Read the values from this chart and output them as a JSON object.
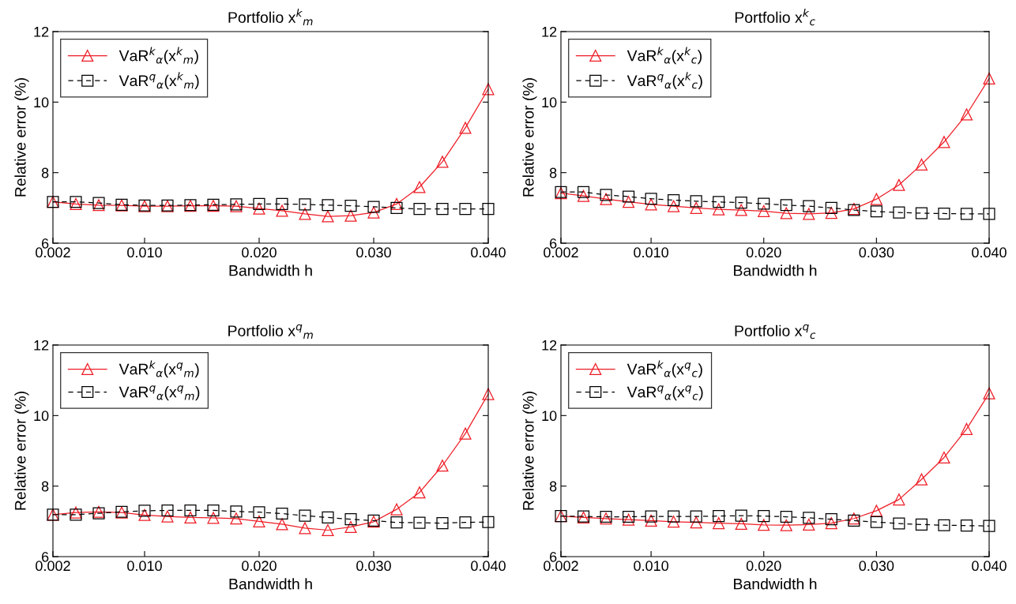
{
  "chart_data": [
    {
      "type": "line",
      "title": "Portfolio x$^{k}$$_{m}$",
      "xlabel": "Bandwidth h",
      "ylabel": "Relative error (%)",
      "x": [
        0.002,
        0.004,
        0.006,
        0.008,
        0.01,
        0.012,
        0.014,
        0.016,
        0.018,
        0.02,
        0.022,
        0.024,
        0.026,
        0.028,
        0.03,
        0.032,
        0.034,
        0.036,
        0.038,
        0.04
      ],
      "xlim": [
        0.002,
        0.04
      ],
      "xticks": [
        {
          "value": 0.002,
          "label": "0.002"
        },
        {
          "value": 0.01,
          "label": "0.010"
        },
        {
          "value": 0.02,
          "label": "0.020"
        },
        {
          "value": 0.03,
          "label": "0.030"
        },
        {
          "value": 0.04,
          "label": "0.040"
        }
      ],
      "ylim": [
        6,
        12
      ],
      "yticks": [
        6,
        8,
        10,
        12
      ],
      "grid": false,
      "legend": "top left",
      "series": [
        {
          "name": "VaR$^{k}$$_{α}$(x$^{k}$$_{m}$)",
          "color": "#ee1c25",
          "marker": "triangle",
          "line_style": "solid",
          "values": [
            7.17,
            7.11,
            7.08,
            7.07,
            7.05,
            7.05,
            7.06,
            7.06,
            7.05,
            6.98,
            6.92,
            6.83,
            6.76,
            6.78,
            6.87,
            7.11,
            7.59,
            8.31,
            9.27,
            10.37
          ]
        },
        {
          "name": "VaR$^{q}$$_{α}$(x$^{k}$$_{m}$)",
          "color": "#000000",
          "marker": "square",
          "line_style": "dashed",
          "values": [
            7.17,
            7.17,
            7.14,
            7.09,
            7.07,
            7.07,
            7.08,
            7.09,
            7.1,
            7.11,
            7.11,
            7.1,
            7.08,
            7.06,
            7.03,
            7.0,
            6.97,
            6.97,
            6.97,
            6.97
          ]
        }
      ]
    },
    {
      "type": "line",
      "title": "Portfolio x$^{k}$$_{c}$",
      "xlabel": "Bandwidth h",
      "ylabel": "Relative error (%)",
      "x": [
        0.002,
        0.004,
        0.006,
        0.008,
        0.01,
        0.012,
        0.014,
        0.016,
        0.018,
        0.02,
        0.022,
        0.024,
        0.026,
        0.028,
        0.03,
        0.032,
        0.034,
        0.036,
        0.038,
        0.04
      ],
      "xlim": [
        0.002,
        0.04
      ],
      "xticks": [
        {
          "value": 0.002,
          "label": "0.002"
        },
        {
          "value": 0.01,
          "label": "0.010"
        },
        {
          "value": 0.02,
          "label": "0.020"
        },
        {
          "value": 0.03,
          "label": "0.030"
        },
        {
          "value": 0.04,
          "label": "0.040"
        }
      ],
      "ylim": [
        6,
        12
      ],
      "yticks": [
        6,
        8,
        10,
        12
      ],
      "grid": false,
      "legend": "top left",
      "series": [
        {
          "name": "VaR$^{k}$$_{α}$(x$^{k}$$_{c}$)",
          "color": "#ee1c25",
          "marker": "triangle",
          "line_style": "solid",
          "values": [
            7.42,
            7.34,
            7.25,
            7.17,
            7.1,
            7.05,
            7.0,
            6.96,
            6.94,
            6.91,
            6.85,
            6.83,
            6.86,
            6.97,
            7.25,
            7.65,
            8.23,
            8.87,
            9.65,
            10.67
          ]
        },
        {
          "name": "VaR$^{q}$$_{α}$(x$^{k}$$_{c}$)",
          "color": "#000000",
          "marker": "square",
          "line_style": "dashed",
          "values": [
            7.45,
            7.45,
            7.37,
            7.32,
            7.26,
            7.22,
            7.19,
            7.17,
            7.15,
            7.12,
            7.08,
            7.05,
            7.0,
            6.94,
            6.9,
            6.87,
            6.85,
            6.84,
            6.83,
            6.83
          ]
        }
      ]
    },
    {
      "type": "line",
      "title": "Portfolio x$^{q}$$_{m}$",
      "xlabel": "Bandwidth h",
      "ylabel": "Relative error (%)",
      "x": [
        0.002,
        0.004,
        0.006,
        0.008,
        0.01,
        0.012,
        0.014,
        0.016,
        0.018,
        0.02,
        0.022,
        0.024,
        0.026,
        0.028,
        0.03,
        0.032,
        0.034,
        0.036,
        0.038,
        0.04
      ],
      "xlim": [
        0.002,
        0.04
      ],
      "xticks": [
        {
          "value": 0.002,
          "label": "0.002"
        },
        {
          "value": 0.01,
          "label": "0.010"
        },
        {
          "value": 0.02,
          "label": "0.020"
        },
        {
          "value": 0.03,
          "label": "0.030"
        },
        {
          "value": 0.04,
          "label": "0.040"
        }
      ],
      "ylim": [
        6,
        12
      ],
      "yticks": [
        6,
        8,
        10,
        12
      ],
      "grid": false,
      "legend": "top left",
      "series": [
        {
          "name": "VaR$^{k}$$_{α}$(x$^{q}$$_{m}$)",
          "color": "#ee1c25",
          "marker": "triangle",
          "line_style": "solid",
          "values": [
            7.19,
            7.25,
            7.27,
            7.25,
            7.18,
            7.14,
            7.11,
            7.1,
            7.08,
            7.0,
            6.92,
            6.81,
            6.75,
            6.84,
            6.99,
            7.34,
            7.82,
            8.58,
            9.49,
            10.61
          ]
        },
        {
          "name": "VaR$^{q}$$_{α}$(x$^{q}$$_{m}$)",
          "color": "#000000",
          "marker": "square",
          "line_style": "dashed",
          "values": [
            7.19,
            7.19,
            7.23,
            7.27,
            7.3,
            7.31,
            7.31,
            7.31,
            7.28,
            7.26,
            7.22,
            7.16,
            7.11,
            7.06,
            7.02,
            6.97,
            6.96,
            6.95,
            6.97,
            6.98
          ]
        }
      ]
    },
    {
      "type": "line",
      "title": "Portfolio x$^{q}$$_{c}$",
      "xlabel": "Bandwidth h",
      "ylabel": "Relative error (%)",
      "x": [
        0.002,
        0.004,
        0.006,
        0.008,
        0.01,
        0.012,
        0.014,
        0.016,
        0.018,
        0.02,
        0.022,
        0.024,
        0.026,
        0.028,
        0.03,
        0.032,
        0.034,
        0.036,
        0.038,
        0.04
      ],
      "xlim": [
        0.002,
        0.04
      ],
      "xticks": [
        {
          "value": 0.002,
          "label": "0.002"
        },
        {
          "value": 0.01,
          "label": "0.010"
        },
        {
          "value": 0.02,
          "label": "0.020"
        },
        {
          "value": 0.03,
          "label": "0.030"
        },
        {
          "value": 0.04,
          "label": "0.040"
        }
      ],
      "ylim": [
        6,
        12
      ],
      "yticks": [
        6,
        8,
        10,
        12
      ],
      "grid": false,
      "legend": "top left",
      "series": [
        {
          "name": "VaR$^{k}$$_{α}$(x$^{q}$$_{c}$)",
          "color": "#ee1c25",
          "marker": "triangle",
          "line_style": "solid",
          "values": [
            7.15,
            7.11,
            7.08,
            7.05,
            7.02,
            6.99,
            6.97,
            6.95,
            6.93,
            6.9,
            6.89,
            6.91,
            6.95,
            7.08,
            7.3,
            7.62,
            8.19,
            8.81,
            9.62,
            10.63
          ]
        },
        {
          "name": "VaR$^{q}$$_{α}$(x$^{q}$$_{c}$)",
          "color": "#000000",
          "marker": "square",
          "line_style": "dashed",
          "values": [
            7.15,
            7.14,
            7.13,
            7.13,
            7.14,
            7.14,
            7.14,
            7.15,
            7.16,
            7.15,
            7.13,
            7.1,
            7.06,
            7.02,
            6.98,
            6.94,
            6.91,
            6.89,
            6.88,
            6.87
          ]
        }
      ]
    }
  ]
}
